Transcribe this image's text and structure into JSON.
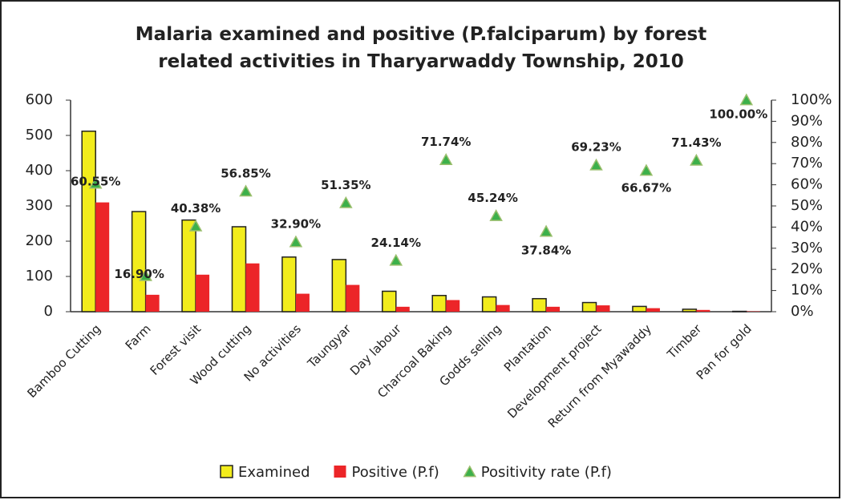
{
  "chart_data": {
    "type": "bar",
    "title": "Malaria examined and positive (P.falciparum) by forest related activities in Tharyarwaddy Township, 2010",
    "categories": [
      "Bamboo Cutting",
      "Farm",
      "Forest visit",
      "Wood cutting",
      "No activities",
      "Taungyar",
      "Day labour",
      "Charcoal Baking",
      "Godds selling",
      "Plantation",
      "Development project",
      "Return from Myawaddy",
      "Timber",
      "Pan for gold"
    ],
    "series": [
      {
        "name": "Examined",
        "type": "bar",
        "color": "#f2ec1c",
        "values": [
          512,
          284,
          260,
          241,
          155,
          148,
          58,
          46,
          42,
          37,
          26,
          15,
          7,
          1
        ]
      },
      {
        "name": "Positive (P.f)",
        "type": "bar",
        "color": "#ec2528",
        "values": [
          310,
          48,
          105,
          137,
          51,
          76,
          14,
          33,
          19,
          14,
          18,
          10,
          5,
          1
        ]
      },
      {
        "name": "Positivity rate (P.f)",
        "type": "scatter",
        "axis": "y2",
        "color": "#3cb04a",
        "values": [
          60.55,
          16.9,
          40.38,
          56.85,
          32.9,
          51.35,
          24.14,
          71.74,
          45.24,
          37.84,
          69.23,
          66.67,
          71.43,
          100
        ],
        "value_labels": [
          "60.55%",
          "16.90%",
          "40.38%",
          "56.85%",
          "32.90%",
          "51.35%",
          "24.14%",
          "71.74%",
          "45.24%",
          "37.84%",
          "69.23%",
          "66.67%",
          "71.43%",
          "100.00%"
        ]
      }
    ],
    "ylim": [
      0,
      600
    ],
    "yticks": [
      0,
      100,
      200,
      300,
      400,
      500,
      600
    ],
    "y2lim": [
      0,
      100
    ],
    "y2ticks": [
      {
        "value": 0,
        "label": "0%"
      },
      {
        "value": 10,
        "label": "10%"
      },
      {
        "value": 20,
        "label": "20%"
      },
      {
        "value": 30,
        "label": "30%"
      },
      {
        "value": 40,
        "label": "40%"
      },
      {
        "value": 50,
        "label": "50%"
      },
      {
        "value": 60,
        "label": "60%"
      },
      {
        "value": 70,
        "label": "70%"
      },
      {
        "value": 80,
        "label": "80%"
      },
      {
        "value": 90,
        "label": "90%"
      },
      {
        "value": 100,
        "label": "100%"
      }
    ],
    "legend": "bottom"
  }
}
